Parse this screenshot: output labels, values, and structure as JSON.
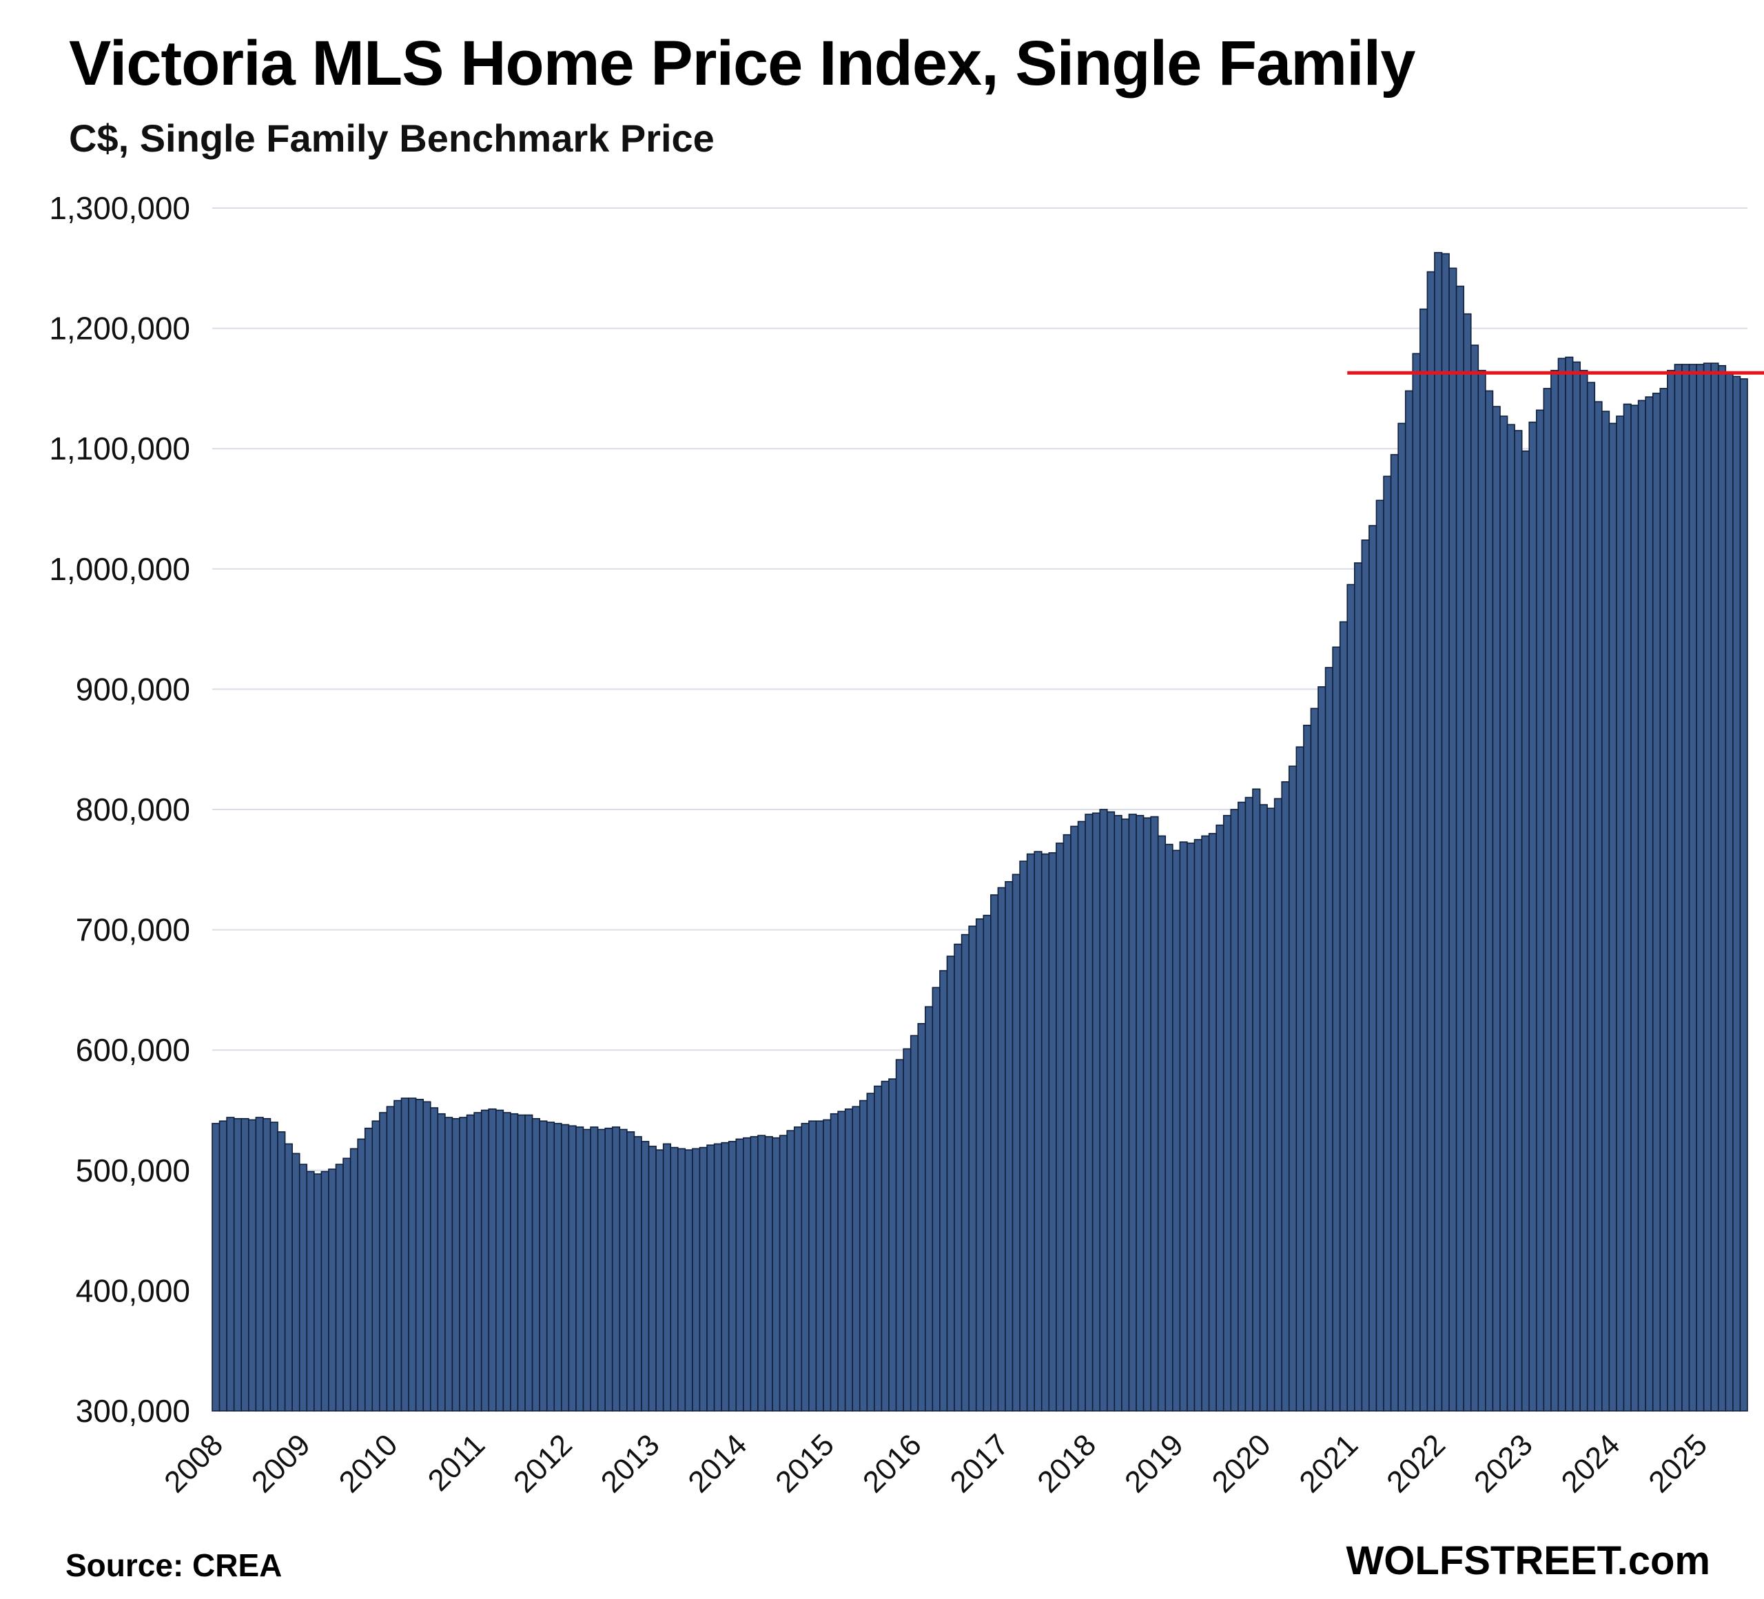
{
  "chart_data": {
    "type": "bar",
    "title": "Victoria MLS Home Price Index, Single Family",
    "subtitle": "C$, Single Family Benchmark Price",
    "xlabel": "",
    "ylabel": "",
    "ylim": [
      300000,
      1300000
    ],
    "yticks": [
      300000,
      400000,
      500000,
      600000,
      700000,
      800000,
      900000,
      1000000,
      1100000,
      1200000,
      1300000
    ],
    "ytick_labels": [
      "300,000",
      "400,000",
      "500,000",
      "600,000",
      "700,000",
      "800,000",
      "900,000",
      "1,000,000",
      "1,100,000",
      "1,200,000",
      "1,300,000"
    ],
    "xtick_labels": [
      "2008",
      "2009",
      "2010",
      "2011",
      "2012",
      "2013",
      "2014",
      "2015",
      "2016",
      "2017",
      "2018",
      "2019",
      "2020",
      "2021",
      "2022",
      "2023",
      "2024",
      "2025"
    ],
    "grid": true,
    "series": [
      {
        "color": "#3a5a8c",
        "edge_color": "#0f1f3a",
        "start": "2008-01",
        "frequency": "monthly",
        "values": [
          539000,
          541000,
          544000,
          543000,
          543000,
          542000,
          544000,
          543000,
          540000,
          532000,
          522000,
          514000,
          505000,
          499000,
          497000,
          499000,
          501000,
          505000,
          510000,
          518000,
          526000,
          535000,
          541000,
          548000,
          553000,
          558000,
          560000,
          560000,
          559000,
          557000,
          552000,
          547000,
          544000,
          543000,
          544000,
          546000,
          548000,
          550000,
          551000,
          550000,
          548000,
          547000,
          546000,
          546000,
          543000,
          541000,
          540000,
          539000,
          538000,
          537000,
          536000,
          534000,
          536000,
          534000,
          535000,
          536000,
          534000,
          532000,
          528000,
          524000,
          520000,
          517000,
          522000,
          519000,
          518000,
          517000,
          518000,
          519000,
          521000,
          522000,
          523000,
          524000,
          526000,
          527000,
          528000,
          529000,
          528000,
          527000,
          529000,
          533000,
          536000,
          539000,
          541000,
          541000,
          542000,
          547000,
          549000,
          551000,
          553000,
          558000,
          564000,
          570000,
          574000,
          576000,
          592000,
          601000,
          612000,
          622000,
          636000,
          652000,
          666000,
          678000,
          688000,
          696000,
          703000,
          709000,
          712000,
          729000,
          735000,
          740000,
          746000,
          757000,
          763000,
          765000,
          763000,
          764000,
          772000,
          779000,
          786000,
          790000,
          796000,
          797000,
          800000,
          798000,
          795000,
          792000,
          796000,
          795000,
          793000,
          794000,
          778000,
          771000,
          766000,
          773000,
          772000,
          775000,
          778000,
          780000,
          787000,
          795000,
          800000,
          806000,
          810000,
          817000,
          804000,
          801000,
          809000,
          823000,
          836000,
          852000,
          870000,
          884000,
          902000,
          918000,
          935000,
          956000,
          987000,
          1005000,
          1024000,
          1036000,
          1057000,
          1077000,
          1095000,
          1121000,
          1148000,
          1179000,
          1216000,
          1247000,
          1263000,
          1262000,
          1250000,
          1235000,
          1212000,
          1186000,
          1165000,
          1148000,
          1135000,
          1127000,
          1120000,
          1115000,
          1098000,
          1122000,
          1132000,
          1150000,
          1165000,
          1175000,
          1176000,
          1172000,
          1165000,
          1155000,
          1139000,
          1131000,
          1121000,
          1127000,
          1137000,
          1136000,
          1140000,
          1143000,
          1146000,
          1150000,
          1165000,
          1170000,
          1170000,
          1170000,
          1170000,
          1171000,
          1171000,
          1169000,
          1162000,
          1160000,
          1158000
        ]
      }
    ],
    "annotations": [
      {
        "type": "hline",
        "y": 1163000,
        "from": "2021-01",
        "to": "2025-12",
        "color": "#e8141c"
      }
    ]
  },
  "footer": {
    "source": "Source: CREA",
    "watermark": "WOLFSTREET.com"
  }
}
